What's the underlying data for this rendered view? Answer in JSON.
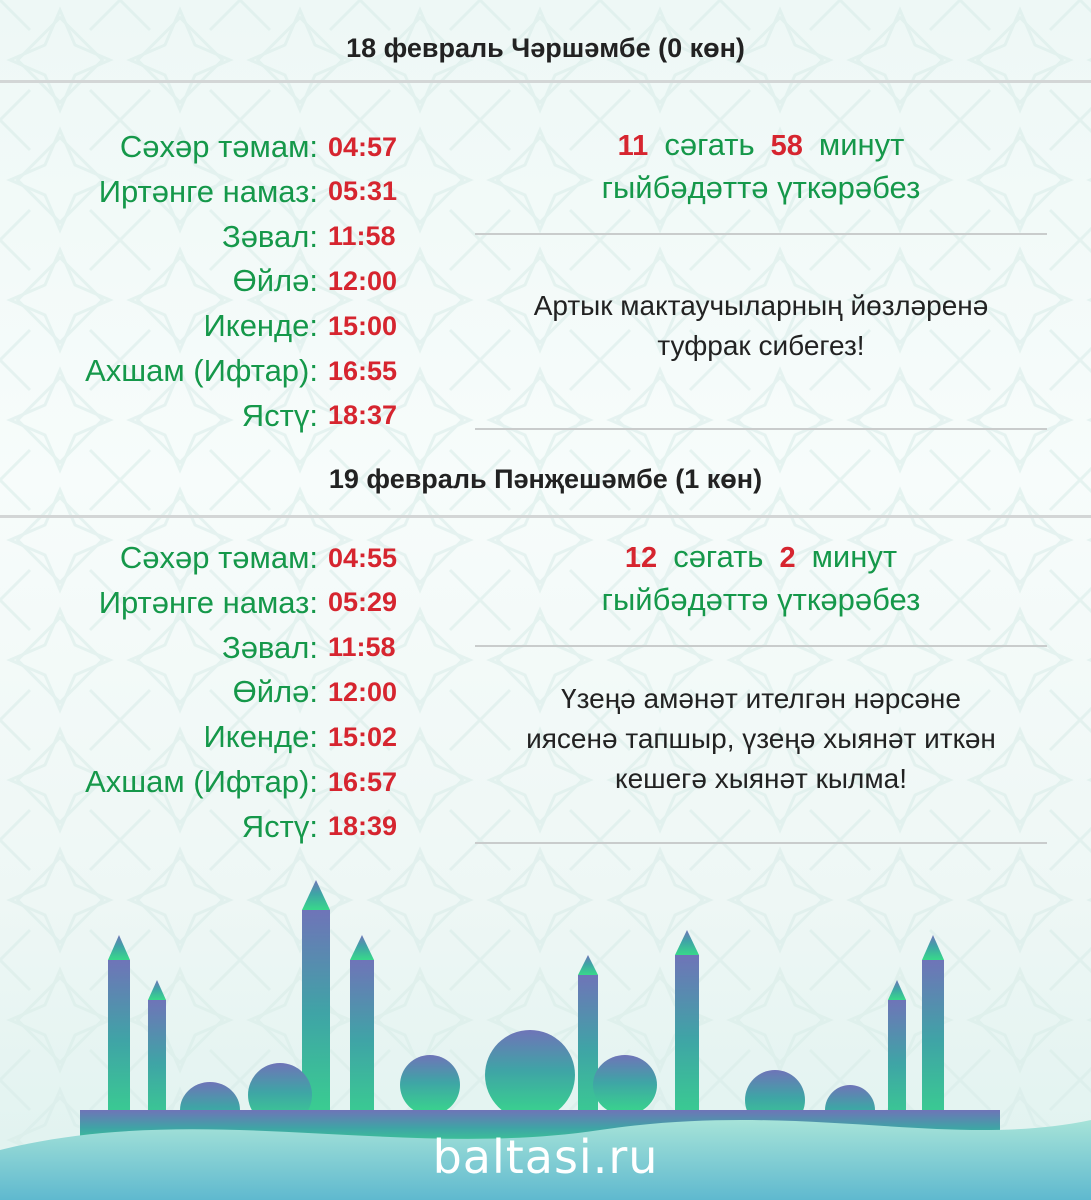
{
  "days": [
    {
      "heading": "18 февраль Чәршәмбе (0 көн)",
      "times": [
        {
          "label": "Сәхәр тәмам:",
          "time": "04:57"
        },
        {
          "label": "Иртәнге намаз:",
          "time": "05:31"
        },
        {
          "label": "Зәвал:",
          "time": "11:58"
        },
        {
          "label": "Өйлә:",
          "time": "12:00"
        },
        {
          "label": "Икенде:",
          "time": "15:00"
        },
        {
          "label": "Ахшам (Ифтар):",
          "time": "16:55"
        },
        {
          "label": "Ястү:",
          "time": "18:37"
        }
      ],
      "duration": {
        "hours": "11",
        "hours_word": "сәгать",
        "minutes": "58",
        "minutes_word": "минут",
        "line2": "гыйбәдәттә үткәрәбез"
      },
      "quote": [
        "Артык мактаучыларның йөзләренә",
        "туфрак сибегез!"
      ]
    },
    {
      "heading": "19 февраль Пәнҗешәмбе (1 көн)",
      "times": [
        {
          "label": "Сәхәр тәмам:",
          "time": "04:55"
        },
        {
          "label": "Иртәнге намаз:",
          "time": "05:29"
        },
        {
          "label": "Зәвал:",
          "time": "11:58"
        },
        {
          "label": "Өйлә:",
          "time": "12:00"
        },
        {
          "label": "Икенде:",
          "time": "15:02"
        },
        {
          "label": "Ахшам (Ифтар):",
          "time": "16:57"
        },
        {
          "label": "Ястү:",
          "time": "18:39"
        }
      ],
      "duration": {
        "hours": "12",
        "hours_word": "сәгать",
        "minutes": "2",
        "minutes_word": "минут",
        "line2": "гыйбәдәттә үткәрәбез"
      },
      "quote": [
        "Үзеңә амәнәт ителгән нәрсәне",
        "иясенә тапшыр, үзеңә хыянәт иткән",
        "кешегә хыянәт кылма!"
      ]
    }
  ],
  "logo": "baltasi.ru",
  "colors": {
    "label": "#15984a",
    "time": "#d6252f",
    "heading": "#222222"
  }
}
